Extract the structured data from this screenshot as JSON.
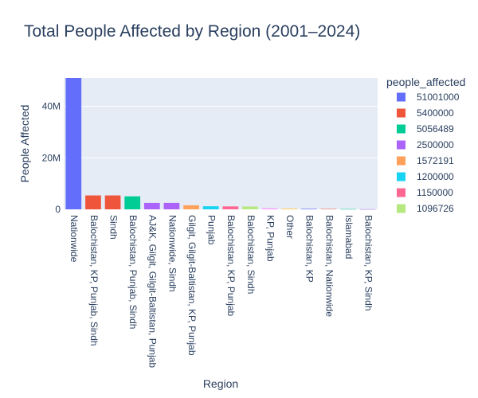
{
  "chart_data": {
    "type": "bar",
    "title": "Total People Affected by Region (2001–2024)",
    "xlabel": "Region",
    "ylabel": "People Affected",
    "ylim": [
      0,
      51001000
    ],
    "yticks": [
      0,
      20000000,
      40000000
    ],
    "ytick_labels": [
      "0",
      "20M",
      "40M"
    ],
    "grid": true,
    "legend": {
      "title": "people_affected",
      "placement": "right"
    },
    "categories": [
      "Nationwide",
      "Balochistan, KP, Punjab, Sindh",
      "Sindh",
      "Balochistan, Punjab, Sindh",
      "AJ&K, Gilgit, Gilgit-Baltistan, Punjab",
      "Nationwide, Sindh",
      "Gilgit, Gilgit-Baltistan, KP, Punjab",
      "Punjab",
      "Balochistan, KP, Punjab",
      "Balochistan, Sindh",
      "KP, Punjab",
      "Other",
      "Balochistan, KP",
      "Balochistan, Nationwide",
      "Islamabad",
      "Balochistan, KP, Sindh"
    ],
    "values": [
      51001000,
      5400000,
      5400000,
      5056489,
      2500000,
      2500000,
      1572191,
      1200000,
      1150000,
      1096726,
      400000,
      300000,
      200000,
      150000,
      100000,
      50000
    ],
    "bar_colors": [
      "#636efa",
      "#ef553b",
      "#ef553b",
      "#00cc96",
      "#ab63fa",
      "#ab63fa",
      "#ffa15a",
      "#19d3f3",
      "#ff6692",
      "#b6e880",
      "#ff97ff",
      "#fecb52",
      "#636efa",
      "#ef553b",
      "#00cc96",
      "#ab63fa"
    ],
    "legend_entries": [
      {
        "label": "51001000",
        "color": "#636efa"
      },
      {
        "label": "5400000",
        "color": "#ef553b"
      },
      {
        "label": "5056489",
        "color": "#00cc96"
      },
      {
        "label": "2500000",
        "color": "#ab63fa"
      },
      {
        "label": "1572191",
        "color": "#ffa15a"
      },
      {
        "label": "1200000",
        "color": "#19d3f3"
      },
      {
        "label": "1150000",
        "color": "#ff6692"
      },
      {
        "label": "1096726",
        "color": "#b6e880"
      }
    ],
    "colors": {
      "plot_background": "#e5ecf6",
      "grid": "#ffffff",
      "text": "#2a3f5f"
    }
  }
}
